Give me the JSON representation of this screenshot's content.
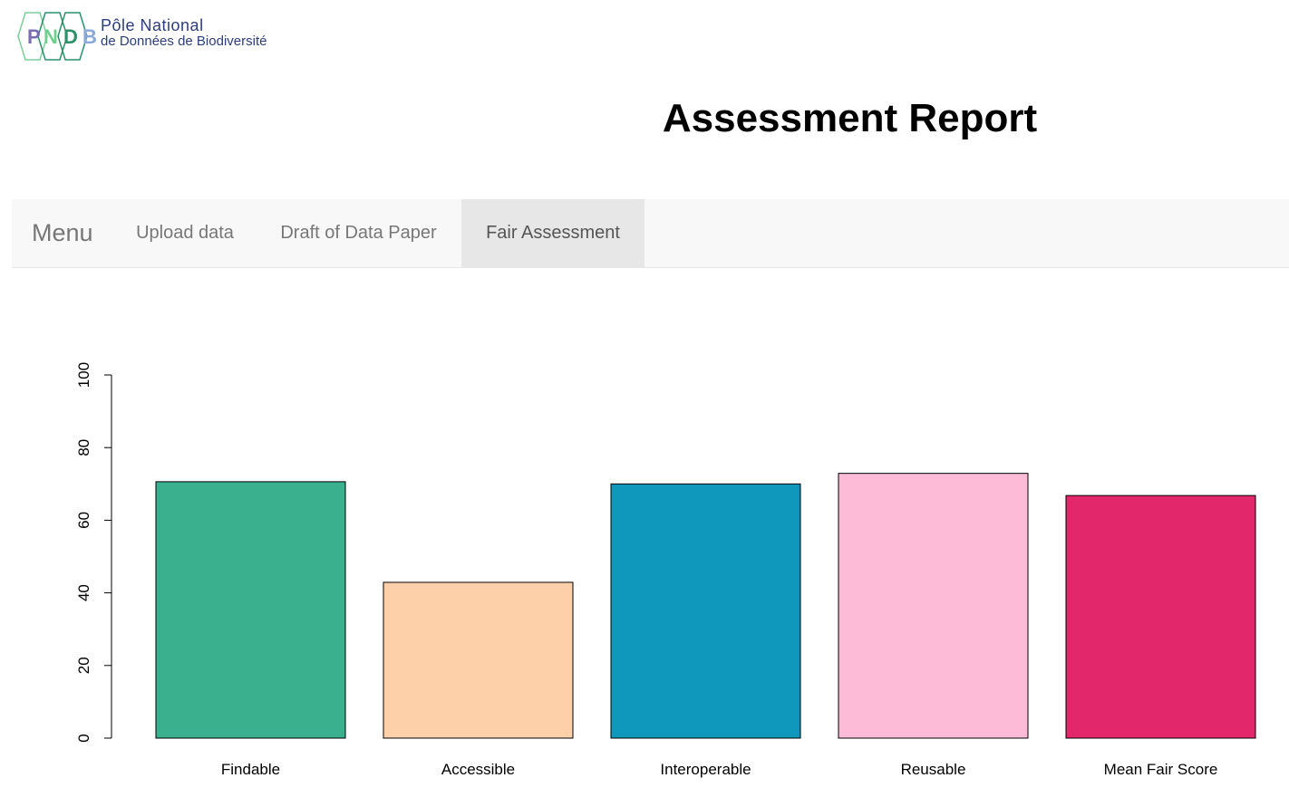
{
  "logo": {
    "letters": [
      "P",
      "N",
      "D",
      "B"
    ],
    "line1": "Pôle National",
    "line2": "de Données de Biodiversité"
  },
  "header": {
    "title": "Assessment Report"
  },
  "navbar": {
    "brand": "Menu",
    "items": [
      {
        "label": "Upload data",
        "active": false
      },
      {
        "label": "Draft of Data Paper",
        "active": false
      },
      {
        "label": "Fair Assessment",
        "active": true
      }
    ]
  },
  "chart_data": {
    "type": "bar",
    "categories": [
      "Findable",
      "Accessible",
      "Interoperable",
      "Reusable",
      "Mean Fair Score"
    ],
    "values": [
      70.6,
      42.9,
      70.0,
      72.9,
      66.8
    ],
    "colors": [
      "#3bb08f",
      "#fed0aa",
      "#0f98bb",
      "#febbd8",
      "#e2276b"
    ],
    "ylim": [
      0,
      100
    ],
    "yticks": [
      "0",
      "20",
      "40",
      "60",
      "80",
      "100"
    ],
    "title": "",
    "xlabel": "",
    "ylabel": ""
  }
}
